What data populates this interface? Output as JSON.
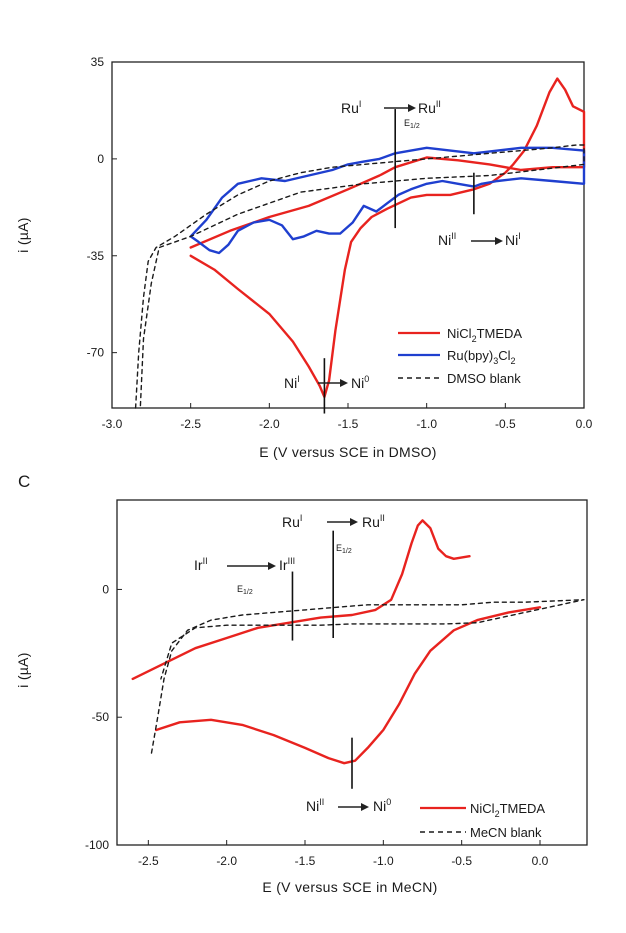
{
  "figure": {
    "panel_c_label": "C"
  },
  "chart_data": [
    {
      "type": "line",
      "xlabel": "E (V versus SCE in DMSO)",
      "ylabel": "i (µA)",
      "xlim": [
        -3.0,
        0.0
      ],
      "ylim": [
        -90,
        35
      ],
      "xticks": [
        -3.0,
        -2.5,
        -2.0,
        -1.5,
        -1.0,
        -0.5,
        0.0
      ],
      "xtick_labels": [
        "-3.0",
        "-2.5",
        "-2.0",
        "-1.5",
        "-1.0",
        "-0.5",
        "0.0"
      ],
      "yticks": [
        35,
        0,
        -35,
        -70
      ],
      "ytick_labels": [
        "35",
        "0",
        "-35",
        "-70"
      ],
      "annotations": {
        "ru_top": {
          "from": "Ru",
          "from_sup": "I",
          "to": "Ru",
          "to_sup": "II",
          "e_label": "E",
          "e_sub": "1/2",
          "x": -1.2
        },
        "ni_mid": {
          "from": "Ni",
          "from_sup": "II",
          "to": "Ni",
          "to_sup": "I",
          "x": -0.7
        },
        "ni_low": {
          "from": "Ni",
          "from_sup": "I",
          "to": "Ni",
          "to_sup": "0",
          "x": -1.65
        }
      },
      "legend": [
        {
          "label_pre": "NiCl",
          "label_sub": "2",
          "label_post": "TMEDA",
          "color": "#e8231f",
          "style": "solid"
        },
        {
          "label_pre": "Ru(bpy)",
          "label_sub": "3",
          "label_post": "Cl",
          "label_sub2": "2",
          "color": "#1f3fcf",
          "style": "solid"
        },
        {
          "label_pre": "",
          "label_sub": "",
          "label_post": "DMSO blank",
          "color": "#1a1a1a",
          "style": "dashed"
        }
      ],
      "series": [
        {
          "name": "NiCl2TMEDA",
          "color": "#e8231f",
          "style": "solid",
          "points": [
            [
              -2.5,
              -35
            ],
            [
              -2.35,
              -40
            ],
            [
              -2.2,
              -47
            ],
            [
              -2.0,
              -56
            ],
            [
              -1.85,
              -66
            ],
            [
              -1.75,
              -75
            ],
            [
              -1.68,
              -82
            ],
            [
              -1.65,
              -86
            ],
            [
              -1.62,
              -80
            ],
            [
              -1.58,
              -62
            ],
            [
              -1.52,
              -40
            ],
            [
              -1.48,
              -30
            ],
            [
              -1.42,
              -25
            ],
            [
              -1.35,
              -21
            ],
            [
              -1.25,
              -18
            ],
            [
              -1.1,
              -14
            ],
            [
              -1.0,
              -13
            ],
            [
              -0.85,
              -13
            ],
            [
              -0.7,
              -11
            ],
            [
              -0.6,
              -9
            ],
            [
              -0.5,
              -5
            ],
            [
              -0.45,
              -2
            ],
            [
              -0.38,
              3
            ],
            [
              -0.3,
              12
            ],
            [
              -0.22,
              24
            ],
            [
              -0.17,
              29
            ],
            [
              -0.12,
              25
            ],
            [
              -0.07,
              19
            ],
            [
              0.0,
              17
            ],
            [
              0.0,
              -3
            ],
            [
              -0.2,
              -3
            ],
            [
              -0.4,
              -4
            ],
            [
              -0.6,
              -2
            ],
            [
              -0.8,
              -0.5
            ],
            [
              -1.0,
              0.5
            ],
            [
              -1.2,
              -3
            ],
            [
              -1.3,
              -6
            ],
            [
              -1.5,
              -11
            ],
            [
              -1.75,
              -17
            ],
            [
              -2.0,
              -21
            ],
            [
              -2.25,
              -26
            ],
            [
              -2.5,
              -32
            ]
          ]
        },
        {
          "name": "Ru(bpy)3Cl2",
          "color": "#1f3fcf",
          "style": "solid",
          "points": [
            [
              -2.5,
              -28
            ],
            [
              -2.4,
              -22
            ],
            [
              -2.3,
              -14
            ],
            [
              -2.2,
              -9
            ],
            [
              -2.05,
              -7
            ],
            [
              -1.9,
              -8
            ],
            [
              -1.75,
              -6
            ],
            [
              -1.6,
              -4
            ],
            [
              -1.5,
              -2
            ],
            [
              -1.4,
              -1
            ],
            [
              -1.3,
              0
            ],
            [
              -1.2,
              2
            ],
            [
              -1.1,
              3
            ],
            [
              -1.0,
              4
            ],
            [
              -0.85,
              3
            ],
            [
              -0.7,
              2
            ],
            [
              -0.55,
              3
            ],
            [
              -0.4,
              4
            ],
            [
              -0.2,
              4
            ],
            [
              0.0,
              3
            ],
            [
              0.0,
              -9
            ],
            [
              -0.2,
              -8
            ],
            [
              -0.4,
              -7
            ],
            [
              -0.55,
              -8
            ],
            [
              -0.65,
              -9
            ],
            [
              -0.7,
              -10
            ],
            [
              -0.8,
              -9
            ],
            [
              -0.9,
              -8
            ],
            [
              -1.0,
              -9
            ],
            [
              -1.1,
              -11
            ],
            [
              -1.18,
              -13
            ],
            [
              -1.25,
              -16
            ],
            [
              -1.32,
              -19
            ],
            [
              -1.4,
              -17
            ],
            [
              -1.47,
              -23
            ],
            [
              -1.55,
              -27
            ],
            [
              -1.62,
              -27
            ],
            [
              -1.7,
              -26
            ],
            [
              -1.78,
              -28
            ],
            [
              -1.85,
              -29
            ],
            [
              -1.92,
              -24
            ],
            [
              -2.0,
              -22
            ],
            [
              -2.1,
              -23
            ],
            [
              -2.2,
              -26
            ],
            [
              -2.26,
              -31
            ],
            [
              -2.32,
              -34
            ],
            [
              -2.38,
              -33
            ],
            [
              -2.45,
              -30
            ],
            [
              -2.5,
              -28
            ]
          ]
        },
        {
          "name": "DMSO blank",
          "color": "#1a1a1a",
          "style": "dashed",
          "points": [
            [
              -2.85,
              -90
            ],
            [
              -2.83,
              -70
            ],
            [
              -2.8,
              -50
            ],
            [
              -2.77,
              -37
            ],
            [
              -2.72,
              -32
            ],
            [
              -2.6,
              -28
            ],
            [
              -2.4,
              -20
            ],
            [
              -2.2,
              -13
            ],
            [
              -2.0,
              -8
            ],
            [
              -1.8,
              -5
            ],
            [
              -1.6,
              -3
            ],
            [
              -1.4,
              -2
            ],
            [
              -1.2,
              -1
            ],
            [
              -1.0,
              0
            ],
            [
              -0.8,
              1
            ],
            [
              -0.6,
              2
            ],
            [
              -0.4,
              3
            ],
            [
              -0.2,
              4
            ],
            [
              -0.05,
              5
            ],
            [
              0.0,
              5
            ],
            [
              0.0,
              -2
            ],
            [
              -0.3,
              -4
            ],
            [
              -0.6,
              -6
            ],
            [
              -1.0,
              -7
            ],
            [
              -1.4,
              -9
            ],
            [
              -1.8,
              -12
            ],
            [
              -2.2,
              -20
            ],
            [
              -2.5,
              -28
            ],
            [
              -2.7,
              -32
            ],
            [
              -2.75,
              -45
            ],
            [
              -2.8,
              -65
            ],
            [
              -2.82,
              -90
            ]
          ]
        }
      ]
    },
    {
      "type": "line",
      "xlabel": "E (V versus SCE in MeCN)",
      "ylabel": "i (µA)",
      "xlim": [
        -2.7,
        0.3
      ],
      "ylim": [
        -100,
        35
      ],
      "xticks": [
        -2.5,
        -2.0,
        -1.5,
        -1.0,
        -0.5,
        0.0
      ],
      "xtick_labels": [
        "-2.5",
        "-2.0",
        "-1.5",
        "-1.0",
        "-0.5",
        "0.0"
      ],
      "yticks": [
        0,
        -50,
        -100
      ],
      "ytick_labels": [
        "0",
        "-50",
        "-100"
      ],
      "annotations": {
        "ru_top": {
          "from": "Ru",
          "from_sup": "I",
          "to": "Ru",
          "to_sup": "II",
          "e_label": "E",
          "e_sub": "1/2",
          "x": -1.32
        },
        "ir": {
          "from": "Ir",
          "from_sup": "II",
          "to": "Ir",
          "to_sup": "III",
          "e_label": "E",
          "e_sub": "1/2",
          "x": -1.58
        },
        "ni_low": {
          "from": "Ni",
          "from_sup": "II",
          "to": "Ni",
          "to_sup": "0",
          "x": -1.2
        }
      },
      "legend": [
        {
          "label_pre": "NiCl",
          "label_sub": "2",
          "label_post": "TMEDA",
          "color": "#e8231f",
          "style": "solid"
        },
        {
          "label_pre": "",
          "label_sub": "",
          "label_post": "MeCN blank",
          "color": "#1a1a1a",
          "style": "dashed"
        }
      ],
      "series": [
        {
          "name": "NiCl2TMEDA",
          "color": "#e8231f",
          "style": "solid",
          "points": [
            [
              -2.6,
              -35
            ],
            [
              -2.4,
              -29
            ],
            [
              -2.2,
              -23
            ],
            [
              -2.0,
              -19
            ],
            [
              -1.8,
              -15
            ],
            [
              -1.6,
              -13
            ],
            [
              -1.4,
              -11
            ],
            [
              -1.2,
              -10
            ],
            [
              -1.05,
              -8
            ],
            [
              -0.95,
              -4
            ],
            [
              -0.88,
              6
            ],
            [
              -0.82,
              18
            ],
            [
              -0.78,
              25
            ],
            [
              -0.75,
              27
            ],
            [
              -0.7,
              24
            ],
            [
              -0.65,
              16
            ],
            [
              -0.6,
              13
            ],
            [
              -0.55,
              12
            ],
            [
              -0.45,
              13
            ]
          ]
        },
        {
          "name": "NiCl2TMEDA-return",
          "color": "#e8231f",
          "style": "solid",
          "points": [
            [
              -2.45,
              -55
            ],
            [
              -2.3,
              -52
            ],
            [
              -2.1,
              -51
            ],
            [
              -1.9,
              -53
            ],
            [
              -1.7,
              -57
            ],
            [
              -1.5,
              -62
            ],
            [
              -1.35,
              -66
            ],
            [
              -1.25,
              -68
            ],
            [
              -1.18,
              -67
            ],
            [
              -1.1,
              -62
            ],
            [
              -1.0,
              -55
            ],
            [
              -0.9,
              -45
            ],
            [
              -0.8,
              -33
            ],
            [
              -0.7,
              -24
            ],
            [
              -0.55,
              -16
            ],
            [
              -0.4,
              -12
            ],
            [
              -0.2,
              -9
            ],
            [
              0.0,
              -7
            ]
          ]
        },
        {
          "name": "MeCN blank",
          "color": "#1a1a1a",
          "style": "dashed",
          "points": [
            [
              -2.48,
              -64
            ],
            [
              -2.44,
              -50
            ],
            [
              -2.4,
              -35
            ],
            [
              -2.35,
              -24
            ],
            [
              -2.25,
              -16
            ],
            [
              -2.1,
              -12
            ],
            [
              -1.9,
              -10
            ],
            [
              -1.7,
              -9
            ],
            [
              -1.5,
              -8
            ],
            [
              -1.3,
              -7
            ],
            [
              -1.1,
              -6
            ],
            [
              -0.9,
              -6
            ],
            [
              -0.7,
              -6
            ],
            [
              -0.5,
              -6
            ],
            [
              -0.3,
              -5
            ],
            [
              -0.1,
              -5
            ],
            [
              0.1,
              -4.5
            ],
            [
              0.28,
              -4
            ],
            [
              -0.4,
              -13
            ],
            [
              -0.6,
              -13.5
            ],
            [
              -0.8,
              -13.5
            ],
            [
              -1.0,
              -13.5
            ],
            [
              -1.2,
              -13.5
            ],
            [
              -1.4,
              -14
            ],
            [
              -1.6,
              -14
            ],
            [
              -1.8,
              -14
            ],
            [
              -2.0,
              -14
            ],
            [
              -2.2,
              -15
            ],
            [
              -2.35,
              -21
            ],
            [
              -2.42,
              -35
            ]
          ]
        }
      ]
    }
  ]
}
